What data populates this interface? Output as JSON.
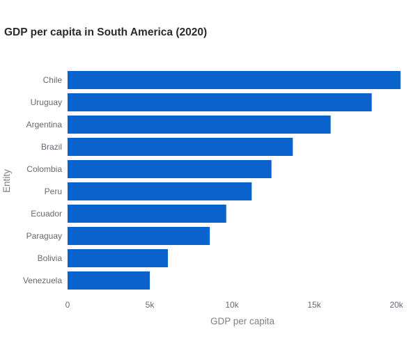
{
  "chart_data": {
    "type": "bar",
    "orientation": "horizontal",
    "title": "GDP per capita in South America (2020)",
    "xlabel": "GDP per capita",
    "ylabel": "Entity",
    "categories": [
      "Chile",
      "Uruguay",
      "Argentina",
      "Brazil",
      "Colombia",
      "Peru",
      "Ecuador",
      "Paraguay",
      "Bolivia",
      "Venezuela"
    ],
    "values": [
      20250,
      18500,
      16000,
      13700,
      12400,
      11200,
      9650,
      8650,
      6100,
      5000
    ],
    "xlim": [
      0,
      20000
    ],
    "xticks": [
      0,
      5000,
      10000,
      15000,
      20000
    ],
    "xtick_labels": [
      "0",
      "5k",
      "10k",
      "15k",
      "20k"
    ],
    "grid": false,
    "legend": "none",
    "bar_color": "#0a62cc"
  }
}
